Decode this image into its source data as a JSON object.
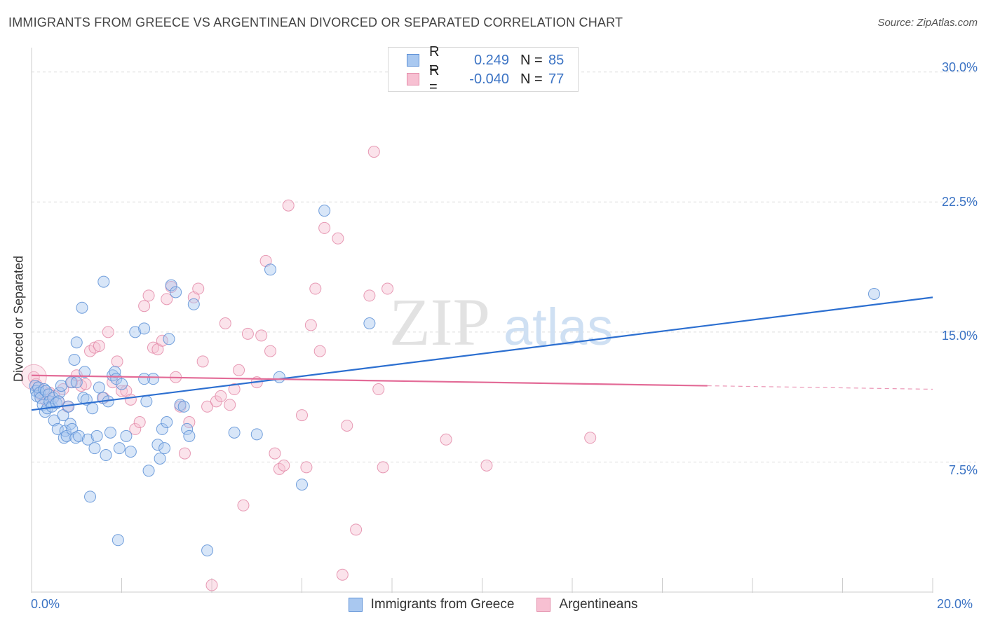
{
  "title": "IMMIGRANTS FROM GREECE VS ARGENTINEAN DIVORCED OR SEPARATED CORRELATION CHART",
  "source": "Source: ZipAtlas.com",
  "watermark": {
    "zip": "ZIP",
    "atlas": "atlas"
  },
  "legend_top": {
    "rows": [
      {
        "r_label": "R =",
        "r_value": "0.249",
        "n_label": "N =",
        "n_value": "85"
      },
      {
        "r_label": "R =",
        "r_value": "-0.040",
        "n_label": "N =",
        "n_value": "77"
      }
    ]
  },
  "legend_bottom": {
    "items": [
      {
        "label": "Immigrants from Greece"
      },
      {
        "label": "Argentineans"
      }
    ]
  },
  "colors": {
    "blue_fill": "#a9c8f0",
    "blue_stroke": "#5b8fd6",
    "blue_line": "#2c6fd0",
    "pink_fill": "#f7c0d2",
    "pink_stroke": "#e38aa8",
    "pink_line": "#e36b97",
    "grid": "#dddddd",
    "axis_label": "#3b73c4"
  },
  "chart_data": {
    "type": "scatter",
    "title": "IMMIGRANTS FROM GREECE VS ARGENTINEAN DIVORCED OR SEPARATED CORRELATION CHART",
    "xlabel": "",
    "ylabel": "Divorced or Separated",
    "xlim": [
      0,
      20
    ],
    "ylim": [
      0,
      31
    ],
    "x_tick_labels": [
      "0.0%",
      "20.0%"
    ],
    "y_tick_labels": [
      "7.5%",
      "15.0%",
      "22.5%",
      "30.0%"
    ],
    "y_ticks": [
      7.5,
      15.0,
      22.5,
      30.0
    ],
    "grid": true,
    "series": [
      {
        "name": "Immigrants from Greece",
        "R": 0.249,
        "N": 85,
        "trend": {
          "x": [
            0,
            20
          ],
          "y": [
            10.5,
            17.0
          ]
        },
        "points": [
          [
            0.08,
            11.9
          ],
          [
            0.1,
            11.6
          ],
          [
            0.12,
            11.3
          ],
          [
            0.15,
            11.8
          ],
          [
            0.18,
            11.5
          ],
          [
            0.2,
            11.2
          ],
          [
            0.25,
            10.8
          ],
          [
            0.28,
            11.7
          ],
          [
            0.3,
            10.4
          ],
          [
            0.32,
            11.6
          ],
          [
            0.35,
            10.6
          ],
          [
            0.38,
            11.4
          ],
          [
            0.4,
            11.0
          ],
          [
            0.45,
            10.7
          ],
          [
            0.48,
            11.2
          ],
          [
            0.5,
            9.9
          ],
          [
            0.55,
            10.9
          ],
          [
            0.58,
            9.4
          ],
          [
            0.62,
            11.5
          ],
          [
            0.66,
            11.9
          ],
          [
            0.7,
            10.2
          ],
          [
            0.72,
            8.9
          ],
          [
            0.75,
            9.3
          ],
          [
            0.78,
            9.0
          ],
          [
            0.82,
            10.7
          ],
          [
            0.86,
            9.7
          ],
          [
            0.88,
            12.1
          ],
          [
            0.9,
            9.4
          ],
          [
            0.95,
            13.4
          ],
          [
            0.98,
            8.9
          ],
          [
            1.0,
            14.4
          ],
          [
            1.05,
            9.0
          ],
          [
            1.12,
            16.4
          ],
          [
            1.15,
            11.2
          ],
          [
            1.18,
            12.7
          ],
          [
            1.22,
            11.1
          ],
          [
            1.25,
            8.8
          ],
          [
            1.3,
            5.5
          ],
          [
            1.35,
            10.6
          ],
          [
            1.4,
            8.3
          ],
          [
            1.45,
            9.0
          ],
          [
            1.5,
            11.8
          ],
          [
            1.58,
            11.2
          ],
          [
            1.6,
            17.9
          ],
          [
            1.65,
            7.9
          ],
          [
            1.7,
            11.0
          ],
          [
            1.75,
            9.2
          ],
          [
            1.8,
            12.5
          ],
          [
            1.85,
            12.7
          ],
          [
            1.88,
            12.3
          ],
          [
            1.95,
            8.3
          ],
          [
            2.0,
            12.0
          ],
          [
            2.1,
            9.0
          ],
          [
            2.2,
            8.1
          ],
          [
            2.3,
            15.0
          ],
          [
            2.5,
            15.2
          ],
          [
            2.55,
            11.0
          ],
          [
            2.6,
            7.0
          ],
          [
            2.7,
            12.3
          ],
          [
            2.8,
            8.5
          ],
          [
            2.85,
            7.7
          ],
          [
            2.9,
            9.4
          ],
          [
            2.95,
            8.3
          ],
          [
            3.05,
            14.6
          ],
          [
            3.1,
            17.7
          ],
          [
            3.2,
            17.3
          ],
          [
            3.3,
            10.8
          ],
          [
            3.38,
            10.7
          ],
          [
            3.45,
            9.4
          ],
          [
            3.5,
            9.0
          ],
          [
            3.6,
            16.6
          ],
          [
            3.9,
            2.4
          ],
          [
            4.5,
            9.2
          ],
          [
            5.0,
            9.1
          ],
          [
            5.3,
            18.6
          ],
          [
            5.5,
            12.4
          ],
          [
            6.0,
            6.2
          ],
          [
            6.5,
            22.0
          ],
          [
            7.5,
            15.5
          ],
          [
            18.7,
            17.2
          ],
          [
            1.92,
            3.0
          ],
          [
            2.5,
            12.3
          ],
          [
            1.0,
            12.1
          ],
          [
            0.6,
            11.0
          ],
          [
            3.0,
            9.8
          ]
        ]
      },
      {
        "name": "Argentineans",
        "R": -0.04,
        "N": 77,
        "trend": {
          "x": [
            0,
            15
          ],
          "y": [
            12.5,
            11.9
          ],
          "dashed_to": [
            20,
            11.7
          ]
        },
        "points": [
          [
            0.05,
            12.4
          ],
          [
            0.1,
            12.0
          ],
          [
            0.15,
            11.8
          ],
          [
            0.2,
            11.4
          ],
          [
            0.25,
            11.6
          ],
          [
            0.3,
            11.1
          ],
          [
            0.4,
            11.5
          ],
          [
            0.5,
            11.3
          ],
          [
            0.6,
            11.0
          ],
          [
            0.7,
            11.7
          ],
          [
            0.8,
            10.7
          ],
          [
            0.9,
            12.1
          ],
          [
            1.0,
            12.5
          ],
          [
            1.1,
            11.9
          ],
          [
            1.2,
            12.0
          ],
          [
            1.3,
            13.9
          ],
          [
            1.4,
            14.1
          ],
          [
            1.5,
            14.2
          ],
          [
            1.6,
            11.2
          ],
          [
            1.7,
            15.0
          ],
          [
            1.8,
            12.1
          ],
          [
            1.9,
            13.3
          ],
          [
            2.0,
            11.6
          ],
          [
            2.1,
            11.6
          ],
          [
            2.2,
            11.1
          ],
          [
            2.3,
            9.4
          ],
          [
            2.4,
            9.8
          ],
          [
            2.5,
            16.5
          ],
          [
            2.6,
            17.1
          ],
          [
            2.7,
            14.1
          ],
          [
            2.8,
            14.0
          ],
          [
            2.9,
            14.5
          ],
          [
            3.0,
            16.9
          ],
          [
            3.1,
            17.6
          ],
          [
            3.2,
            12.4
          ],
          [
            3.3,
            10.7
          ],
          [
            3.4,
            8.0
          ],
          [
            3.5,
            9.8
          ],
          [
            3.6,
            17.0
          ],
          [
            3.7,
            17.5
          ],
          [
            3.8,
            13.3
          ],
          [
            3.9,
            10.7
          ],
          [
            4.0,
            0.4
          ],
          [
            4.1,
            11.0
          ],
          [
            4.2,
            11.3
          ],
          [
            4.3,
            15.5
          ],
          [
            4.4,
            10.8
          ],
          [
            4.5,
            11.7
          ],
          [
            4.6,
            12.8
          ],
          [
            4.7,
            5.0
          ],
          [
            4.8,
            14.9
          ],
          [
            5.0,
            12.1
          ],
          [
            5.1,
            14.8
          ],
          [
            5.2,
            19.1
          ],
          [
            5.3,
            13.9
          ],
          [
            5.4,
            8.0
          ],
          [
            5.5,
            7.1
          ],
          [
            5.6,
            7.3
          ],
          [
            5.7,
            22.3
          ],
          [
            6.0,
            10.2
          ],
          [
            6.1,
            7.2
          ],
          [
            6.2,
            15.4
          ],
          [
            6.3,
            17.5
          ],
          [
            6.4,
            13.9
          ],
          [
            6.5,
            21.0
          ],
          [
            6.8,
            20.4
          ],
          [
            6.9,
            1.0
          ],
          [
            7.0,
            9.6
          ],
          [
            7.2,
            3.6
          ],
          [
            7.5,
            17.1
          ],
          [
            7.6,
            25.4
          ],
          [
            7.8,
            7.2
          ],
          [
            7.7,
            11.7
          ],
          [
            7.9,
            17.5
          ],
          [
            9.2,
            8.8
          ],
          [
            10.1,
            7.3
          ],
          [
            12.4,
            8.9
          ]
        ]
      }
    ]
  }
}
